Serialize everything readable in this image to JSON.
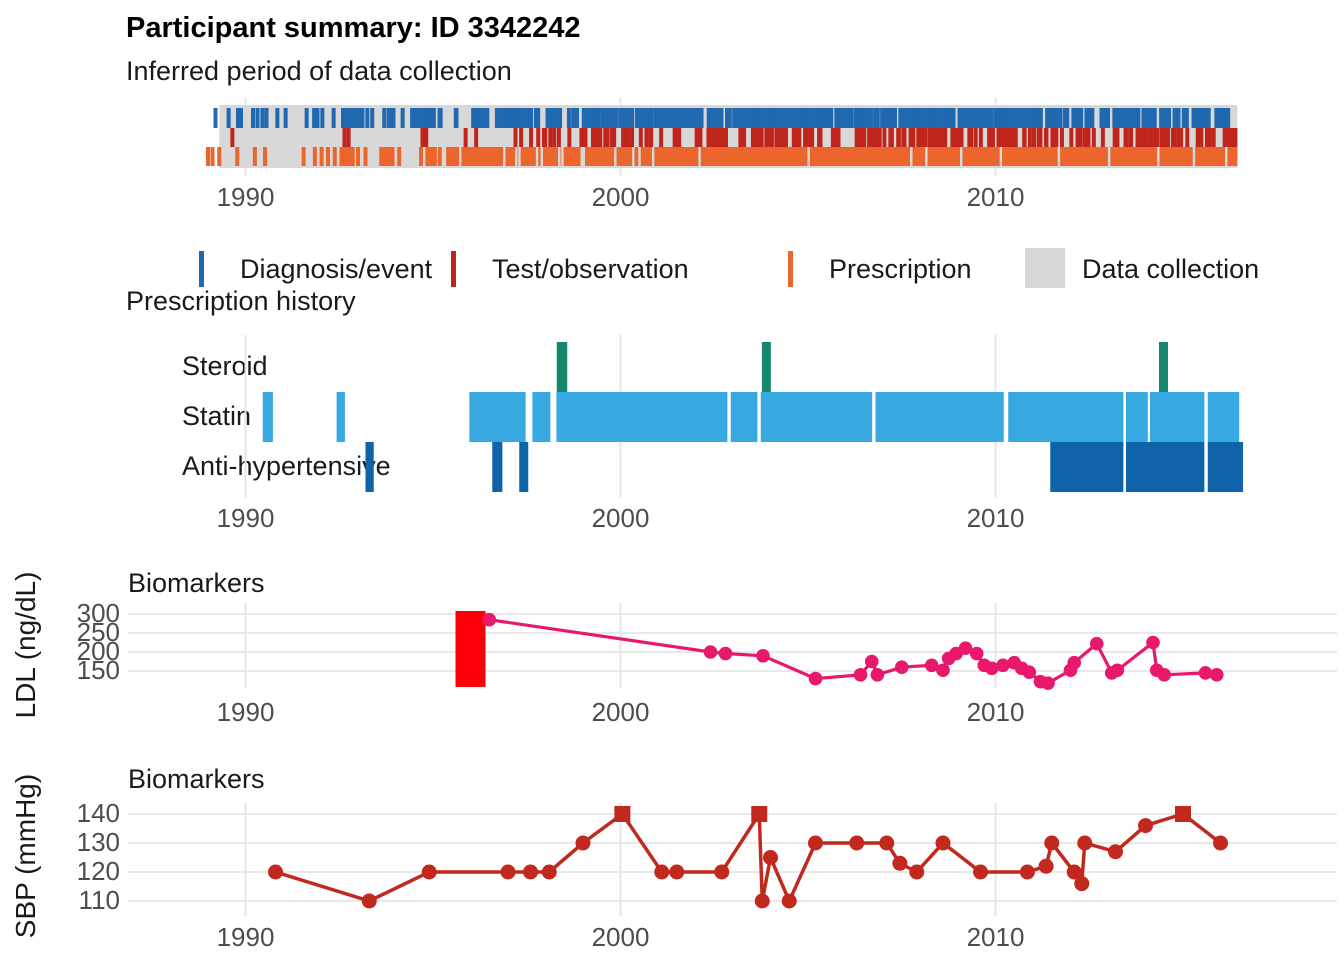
{
  "header": {
    "title": "Participant summary: ID 3342242"
  },
  "legend": {
    "items": [
      {
        "label": "Diagnosis/event",
        "color": "#2068b0",
        "shape": "tick"
      },
      {
        "label": "Test/observation",
        "color": "#c0251b",
        "shape": "tick"
      },
      {
        "label": "Prescription",
        "color": "#eb652c",
        "shape": "tick"
      },
      {
        "label": "Data collection",
        "color": "#d8d8d8",
        "shape": "square"
      }
    ]
  },
  "chart_data": [
    {
      "id": "data-collection-timeline",
      "type": "rug-timeline",
      "title": "Inferred period of data collection",
      "xlim": [
        1987,
        2019
      ],
      "x_ticks": [
        1990,
        2000,
        2010
      ],
      "collection_period": {
        "start": 1989.3,
        "end": 2016.45,
        "color": "#d8d8d8"
      },
      "rows": [
        {
          "name": "Diagnosis/event",
          "color": "#2068b0",
          "ticks": [
            1989.2,
            1989.55,
            1989.8,
            1989.88,
            1990.2,
            1990.32,
            1990.45,
            1990.56,
            1990.85,
            1991.07,
            1991.63,
            1991.83,
            1991.92,
            1992.05,
            1992.35,
            1992.6,
            1992.68,
            1992.76,
            1992.84,
            1992.92,
            1993.02,
            1993.12,
            1993.25,
            1993.38
          ],
          "random_segments": [
            [
              1993.5,
              1996.0,
              26
            ],
            [
              1996.0,
              1998.8,
              55
            ],
            [
              1998.8,
              2003.2,
              130
            ],
            [
              2003.2,
              2008.3,
              170
            ],
            [
              2008.3,
              2016.45,
              185
            ]
          ]
        },
        {
          "name": "Test/observation",
          "color": "#c0251b",
          "ticks": [
            1989.65,
            1992.64,
            1992.75,
            1994.72,
            1994.82,
            1995.87,
            1996.15,
            1997.2,
            1997.35
          ],
          "random_segments": [
            [
              1997.5,
              1999.0,
              10
            ],
            [
              1999.0,
              2002.0,
              24
            ],
            [
              2002.0,
              2006.0,
              50
            ],
            [
              2006.0,
              2010.5,
              60
            ],
            [
              2010.5,
              2016.4,
              70
            ]
          ]
        },
        {
          "name": "Prescription",
          "color": "#eb652c",
          "ticks": [
            1989.0,
            1989.12,
            1989.3,
            1989.78,
            1990.25,
            1990.52,
            1991.55,
            1991.85,
            1992.03,
            1992.2,
            1992.38,
            1992.56,
            1992.66,
            1992.76,
            1992.86,
            1993.0,
            1993.2,
            1993.62,
            1993.72,
            1993.82,
            1993.92,
            1994.1,
            1994.68,
            1994.85,
            1994.95,
            1995.05,
            1995.18
          ],
          "solid_span": [
            1995.35,
            2016.45
          ],
          "random_gap_count": 26,
          "random_segments": []
        }
      ]
    },
    {
      "id": "prescription-history",
      "type": "interval-timeline",
      "title": "Prescription history",
      "x_ticks": [
        1990,
        2000,
        2010
      ],
      "rows": [
        {
          "label": "Steroid",
          "color": "#17866e",
          "intervals": [
            [
              1998.3,
              1998.58
            ],
            [
              2003.77,
              2004.01
            ],
            [
              2014.36,
              2014.6
            ]
          ]
        },
        {
          "label": "Statin",
          "color": "#37a8e0",
          "intervals": [
            [
              1990.46,
              1990.73
            ],
            [
              1992.43,
              1992.65
            ],
            [
              1995.97,
              1997.51
            ],
            [
              1997.65,
              1998.13
            ],
            [
              1998.29,
              2002.89
            ],
            [
              2002.94,
              2003.69
            ],
            [
              2003.74,
              2006.75
            ],
            [
              2006.8,
              2010.26
            ],
            [
              2010.34,
              2013.45
            ],
            [
              2013.48,
              2014.06
            ],
            [
              2014.12,
              2015.61
            ],
            [
              2015.66,
              2016.54
            ]
          ]
        },
        {
          "label": "Anti-hypertensive",
          "color": "#0f63a8",
          "intervals": [
            [
              1993.2,
              1993.42
            ],
            [
              1996.58,
              1996.85
            ],
            [
              1997.3,
              1997.54
            ],
            [
              2011.46,
              2013.45
            ],
            [
              2013.48,
              2015.61
            ],
            [
              2015.66,
              2016.64
            ]
          ]
        }
      ]
    },
    {
      "id": "ldl",
      "type": "line",
      "title": "Biomarkers",
      "ylabel": "LDL (ng/dL)",
      "color": "#e8186c",
      "x_ticks": [
        1990,
        2000,
        2010
      ],
      "y_ticks": [
        300,
        250,
        200,
        150
      ],
      "ylim": [
        100,
        335
      ],
      "highlight_rect": {
        "x_range": [
          1995.6,
          1996.4
        ],
        "y_range": [
          108,
          308
        ],
        "color": "#fb0007"
      },
      "points": [
        [
          1996.5,
          285
        ],
        [
          2002.4,
          200
        ],
        [
          2002.8,
          196
        ],
        [
          2003.8,
          190
        ],
        [
          2005.2,
          130
        ],
        [
          2006.4,
          140
        ],
        [
          2006.7,
          175
        ],
        [
          2006.85,
          140
        ],
        [
          2007.5,
          160
        ],
        [
          2008.3,
          165
        ],
        [
          2008.6,
          152
        ],
        [
          2008.75,
          183
        ],
        [
          2008.95,
          196
        ],
        [
          2009.2,
          210
        ],
        [
          2009.5,
          196
        ],
        [
          2009.7,
          165
        ],
        [
          2009.9,
          157
        ],
        [
          2010.2,
          165
        ],
        [
          2010.5,
          172
        ],
        [
          2010.7,
          157
        ],
        [
          2010.9,
          147
        ],
        [
          2011.2,
          122
        ],
        [
          2011.4,
          118
        ],
        [
          2012.0,
          152
        ],
        [
          2012.1,
          172
        ],
        [
          2012.7,
          222
        ],
        [
          2013.1,
          145
        ],
        [
          2013.25,
          152
        ],
        [
          2014.2,
          225
        ],
        [
          2014.3,
          152
        ],
        [
          2014.5,
          140
        ],
        [
          2015.6,
          145
        ],
        [
          2015.9,
          140
        ]
      ]
    },
    {
      "id": "sbp",
      "type": "line",
      "title": "Biomarkers",
      "ylabel": "SBP (mmHg)",
      "color": "#c1281e",
      "x_ticks": [
        1990,
        2000,
        2010
      ],
      "y_ticks": [
        140,
        130,
        120,
        110
      ],
      "ylim": [
        105,
        145
      ],
      "square_marker_value": 140,
      "points": [
        [
          1990.8,
          120
        ],
        [
          1993.3,
          110
        ],
        [
          1994.9,
          120
        ],
        [
          1997.0,
          120
        ],
        [
          1997.6,
          120
        ],
        [
          1998.1,
          120
        ],
        [
          1999.0,
          130
        ],
        [
          2000.05,
          140
        ],
        [
          2001.1,
          120
        ],
        [
          2001.5,
          120
        ],
        [
          2002.7,
          120
        ],
        [
          2003.7,
          140
        ],
        [
          2003.78,
          110
        ],
        [
          2004.0,
          125
        ],
        [
          2004.5,
          110
        ],
        [
          2005.2,
          130
        ],
        [
          2006.3,
          130
        ],
        [
          2007.1,
          130
        ],
        [
          2007.45,
          123
        ],
        [
          2007.9,
          120
        ],
        [
          2008.6,
          130
        ],
        [
          2009.6,
          120
        ],
        [
          2010.85,
          120
        ],
        [
          2011.35,
          122
        ],
        [
          2011.5,
          130
        ],
        [
          2012.1,
          120
        ],
        [
          2012.3,
          116
        ],
        [
          2012.38,
          130
        ],
        [
          2013.2,
          127
        ],
        [
          2014.0,
          136
        ],
        [
          2015.0,
          140
        ],
        [
          2016.0,
          130
        ]
      ]
    }
  ]
}
